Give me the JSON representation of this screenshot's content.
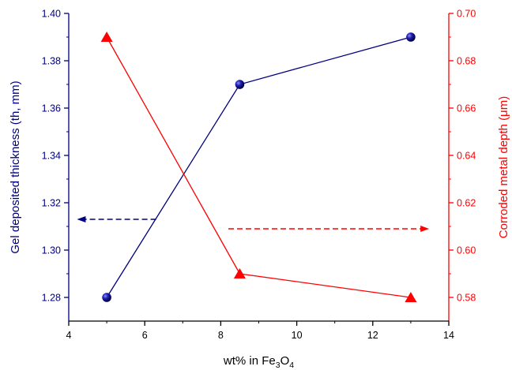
{
  "chart_data": {
    "type": "line",
    "dual_axis": true,
    "xlabel": "wt% in Fe3O4",
    "xlabel_parts": {
      "pre": "wt% in Fe",
      "sub1": "3",
      "mid": "O",
      "sub2": "4"
    },
    "ylabel_left": "Gel deposited thickness (th, mm)",
    "ylabel_right": "Corroded metal depth (μm)",
    "xlim": [
      4,
      14
    ],
    "ylim_left": [
      1.27,
      1.4
    ],
    "ylim_right": [
      0.57,
      0.7
    ],
    "x_ticks": [
      "4",
      "6",
      "8",
      "10",
      "12",
      "14"
    ],
    "y_left_ticks": [
      "1.28",
      "1.30",
      "1.32",
      "1.34",
      "1.36",
      "1.38",
      "1.40"
    ],
    "y_right_ticks": [
      "0.58",
      "0.60",
      "0.62",
      "0.64",
      "0.66",
      "0.68",
      "0.70"
    ],
    "grid": false,
    "legend": "none",
    "series": [
      {
        "axis": "left",
        "marker": "sphere",
        "color": "#000080",
        "x": [
          5,
          8.5,
          13
        ],
        "y": [
          1.28,
          1.37,
          1.39
        ]
      },
      {
        "axis": "right",
        "marker": "triangle",
        "color": "#ff0000",
        "x": [
          5,
          8.5,
          13
        ],
        "y": [
          0.69,
          0.59,
          0.58
        ]
      }
    ],
    "annotations": [
      {
        "type": "dashed-arrow",
        "direction": "left",
        "color": "#000080",
        "y_axis": "left",
        "y": 1.313,
        "x_from": 6.3,
        "x_to": 4.3
      },
      {
        "type": "dashed-arrow",
        "direction": "right",
        "color": "#ff0000",
        "y_axis": "right",
        "y": 0.609,
        "x_from": 8.2,
        "x_to": 13.4
      }
    ]
  },
  "colors": {
    "left_axis": "#000080",
    "right_axis": "#ff0000",
    "x_axis": "#000000"
  }
}
